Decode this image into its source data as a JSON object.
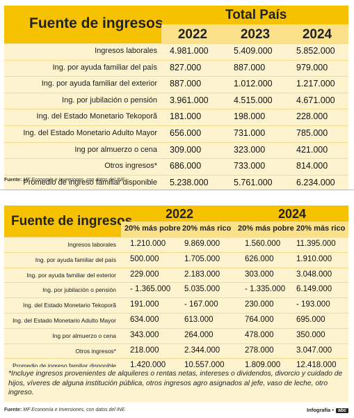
{
  "table1": {
    "header_label": "Fuente de ingresos",
    "group_label": "Total País",
    "years": [
      "2022",
      "2023",
      "2024"
    ],
    "rows": [
      {
        "label": "Ingresos laborales",
        "values": [
          "4.981.000",
          "5.409.000",
          "5.852.000"
        ]
      },
      {
        "label": "Ing. por ayuda familiar del país",
        "values": [
          "827.000",
          "887.000",
          "979.000"
        ]
      },
      {
        "label": "Ing. por ayuda familiar del exterior",
        "values": [
          "887.000",
          "1.012.000",
          "1.217.000"
        ]
      },
      {
        "label": "Ing. por jubilación o pensión",
        "values": [
          "3.961.000",
          "4.515.000",
          "4.671.000"
        ]
      },
      {
        "label": "Ing. del Estado Monetario Tekoporã",
        "values": [
          "181.000",
          "198.000",
          "228.000"
        ]
      },
      {
        "label": "Ing. del Estado Monetario Adulto Mayor",
        "values": [
          "656.000",
          "731.000",
          "785.000"
        ]
      },
      {
        "label": "Ing por almuerzo o cena",
        "values": [
          "309.000",
          "323.000",
          "421.000"
        ]
      },
      {
        "label": "Otros ingresos*",
        "values": [
          "686.000",
          "733.000",
          "814.000"
        ]
      },
      {
        "label": "Promedio de ingreso familiar disponible",
        "values": [
          "5.238.000",
          "5.761.000",
          "6.234.000"
        ]
      }
    ],
    "source_label": "Fuente:",
    "source_text": "MF Economía e Inversiones, con datos del INE."
  },
  "table2": {
    "header_label": "Fuente de ingresos",
    "year_a": "2022",
    "year_b": "2024",
    "subheaders": [
      "20% más pobre",
      "20% más rico",
      "20% más pobre",
      "20% más rico"
    ],
    "rows": [
      {
        "label": "Ingresos laborales",
        "values": [
          "1.210.000",
          "9.869.000",
          "1.560.000",
          "11.395.000"
        ]
      },
      {
        "label": "Ing. por ayuda familiar del país",
        "values": [
          "500.000",
          "1.705.000",
          "626.000",
          "1.910.000"
        ]
      },
      {
        "label": "Ing. por ayuda familiar del exterior",
        "values": [
          "229.000",
          "2.183.000",
          "303.000",
          "3.048.000"
        ]
      },
      {
        "label": "Ing. por jubilación o pensión",
        "values": [
          "- 1.365.000",
          "5.035.000",
          "- 1.335.000",
          "6.149.000"
        ]
      },
      {
        "label": "Ing. del Estado Monetario Tekoporã",
        "values": [
          "191.000",
          "- 167.000",
          "230.000",
          "- 193.000"
        ]
      },
      {
        "label": "Ing. del Estado Monetario Adulto Mayor",
        "values": [
          "634.000",
          "613.000",
          "764.000",
          "695.000"
        ]
      },
      {
        "label": "Ing por almuerzo o cena",
        "values": [
          "343.000",
          "264.000",
          "478.000",
          "350.000"
        ]
      },
      {
        "label": "Otros ingresos*",
        "values": [
          "218.000",
          "2.344.000",
          "278.000",
          "3.047.000"
        ]
      },
      {
        "label": "Promedio de ingreso familiar disponible",
        "values": [
          "1.420.000",
          "10.557.000",
          "1.809.000",
          "12.418.000"
        ]
      }
    ],
    "note": "*Incluye ingresos provenientes de alquileres o rentas netas, intereses o dividendos, divorcio y cuidado de hijos, víveres de alguna institución pública, otros ingresos agro asignados al jefe, vaso de leche, otro ingreso.",
    "source_label": "Fuente:",
    "source_text": "MF Economía e Inversiones, con datos del INE.",
    "credit": "Infografía •",
    "logo": "abc"
  }
}
